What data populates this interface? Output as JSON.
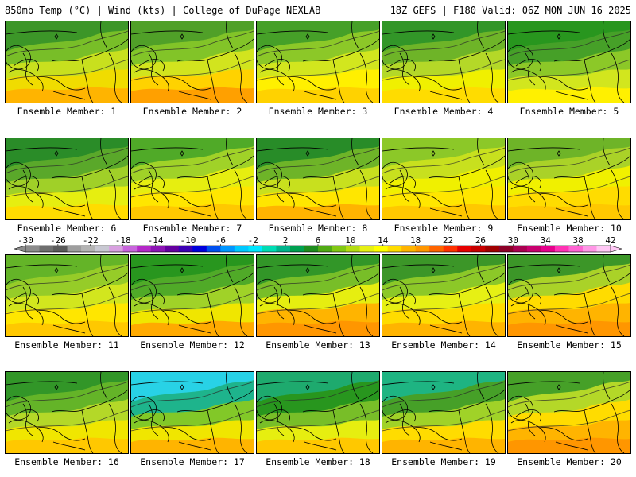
{
  "header": {
    "title_left": "850mb Temp (°C) | Wind (kts) | College of DuPage NEXLAB",
    "title_right": "18Z GEFS | F180 Valid: 06Z MON JUN 16 2025"
  },
  "colorbar": {
    "tick_labels": [
      "-30",
      "-26",
      "-22",
      "-18",
      "-14",
      "-10",
      "-6",
      "-2",
      "2",
      "6",
      "10",
      "14",
      "18",
      "22",
      "26",
      "30",
      "34",
      "38",
      "42"
    ],
    "colors": [
      "#8c8c8c",
      "#6e6e6e",
      "#5a5a5a",
      "#9e9e9e",
      "#b4b4b4",
      "#c8c8d2",
      "#d8a0e0",
      "#c864dc",
      "#b428c8",
      "#8c14b4",
      "#6400a0",
      "#3c00b4",
      "#0000dc",
      "#0050f0",
      "#0096ff",
      "#00c8ff",
      "#00e6ff",
      "#00dcb4",
      "#00b48c",
      "#00a050",
      "#1e8c1e",
      "#50aa14",
      "#82c814",
      "#b4dc14",
      "#e6f014",
      "#ffff00",
      "#ffdc00",
      "#ffb400",
      "#ff9600",
      "#ff6400",
      "#ff3200",
      "#e60000",
      "#c80000",
      "#a00000",
      "#8c0028",
      "#aa0050",
      "#c8006e",
      "#e6008c",
      "#ff32b4",
      "#ff64d2",
      "#ff96e6",
      "#ffc8f5"
    ]
  },
  "panels": [
    {
      "label": "Ensemble Member: 1",
      "colors": [
        "#3c9628",
        "#78be28",
        "#c8e01e",
        "#f0dc00",
        "#ffb400"
      ]
    },
    {
      "label": "Ensemble Member: 2",
      "colors": [
        "#50a028",
        "#82c428",
        "#d2e41e",
        "#ffd200",
        "#ffa000"
      ]
    },
    {
      "label": "Ensemble Member: 3",
      "colors": [
        "#46a028",
        "#8cc828",
        "#d2e61e",
        "#fff000",
        "#ffd200"
      ]
    },
    {
      "label": "Ensemble Member: 4",
      "colors": [
        "#329628",
        "#6eb428",
        "#b4d828",
        "#f0f000",
        "#ffdc00"
      ]
    },
    {
      "label": "Ensemble Member: 5",
      "colors": [
        "#28961e",
        "#46a028",
        "#8cc828",
        "#d2e61e",
        "#fff000"
      ]
    },
    {
      "label": "Ensemble Member: 6",
      "colors": [
        "#2a8c28",
        "#5aa82a",
        "#a0d028",
        "#e6ee10",
        "#ffdc00"
      ]
    },
    {
      "label": "Ensemble Member: 7",
      "colors": [
        "#50aa28",
        "#a0d228",
        "#e6ee10",
        "#ffe600",
        "#ffc800"
      ]
    },
    {
      "label": "Ensemble Member: 8",
      "colors": [
        "#288c28",
        "#6eb428",
        "#c8e01e",
        "#ffe600",
        "#ffb400"
      ]
    },
    {
      "label": "Ensemble Member: 9",
      "colors": [
        "#8cc828",
        "#c8e01e",
        "#f0f000",
        "#ffe600",
        "#ffc800"
      ]
    },
    {
      "label": "Ensemble Member: 10",
      "colors": [
        "#6eb428",
        "#aad228",
        "#f0f000",
        "#ffdc00",
        "#ffc800"
      ]
    },
    {
      "label": "Ensemble Member: 11",
      "colors": [
        "#64b428",
        "#96cc28",
        "#d2e61e",
        "#ffe600",
        "#ffc800"
      ]
    },
    {
      "label": "Ensemble Member: 12",
      "colors": [
        "#28961e",
        "#50aa28",
        "#a0d228",
        "#f0e600",
        "#ffaa00"
      ]
    },
    {
      "label": "Ensemble Member: 13",
      "colors": [
        "#329628",
        "#78be28",
        "#e6ee10",
        "#ffb400",
        "#ff9600"
      ]
    },
    {
      "label": "Ensemble Member: 14",
      "colors": [
        "#3c9628",
        "#8cc828",
        "#e6f014",
        "#ffdc00",
        "#ffb400"
      ]
    },
    {
      "label": "Ensemble Member: 15",
      "colors": [
        "#3c9628",
        "#aad228",
        "#ffdc00",
        "#ffb400",
        "#ff9600"
      ]
    },
    {
      "label": "Ensemble Member: 16",
      "colors": [
        "#329628",
        "#64b428",
        "#b4d828",
        "#f0e600",
        "#ffc800"
      ]
    },
    {
      "label": "Ensemble Member: 17",
      "colors": [
        "#28d2e6",
        "#1eb48c",
        "#82c828",
        "#f0e600",
        "#ffb400"
      ]
    },
    {
      "label": "Ensemble Member: 18",
      "colors": [
        "#1eaa6e",
        "#28961e",
        "#78be28",
        "#e6ee10",
        "#ffc800"
      ]
    },
    {
      "label": "Ensemble Member: 19",
      "colors": [
        "#1eb482",
        "#46a028",
        "#a0d228",
        "#ffdc00",
        "#ffb400"
      ]
    },
    {
      "label": "Ensemble Member: 20",
      "colors": [
        "#46a028",
        "#b4d828",
        "#ffdc00",
        "#ffb400",
        "#ff9600"
      ]
    }
  ]
}
